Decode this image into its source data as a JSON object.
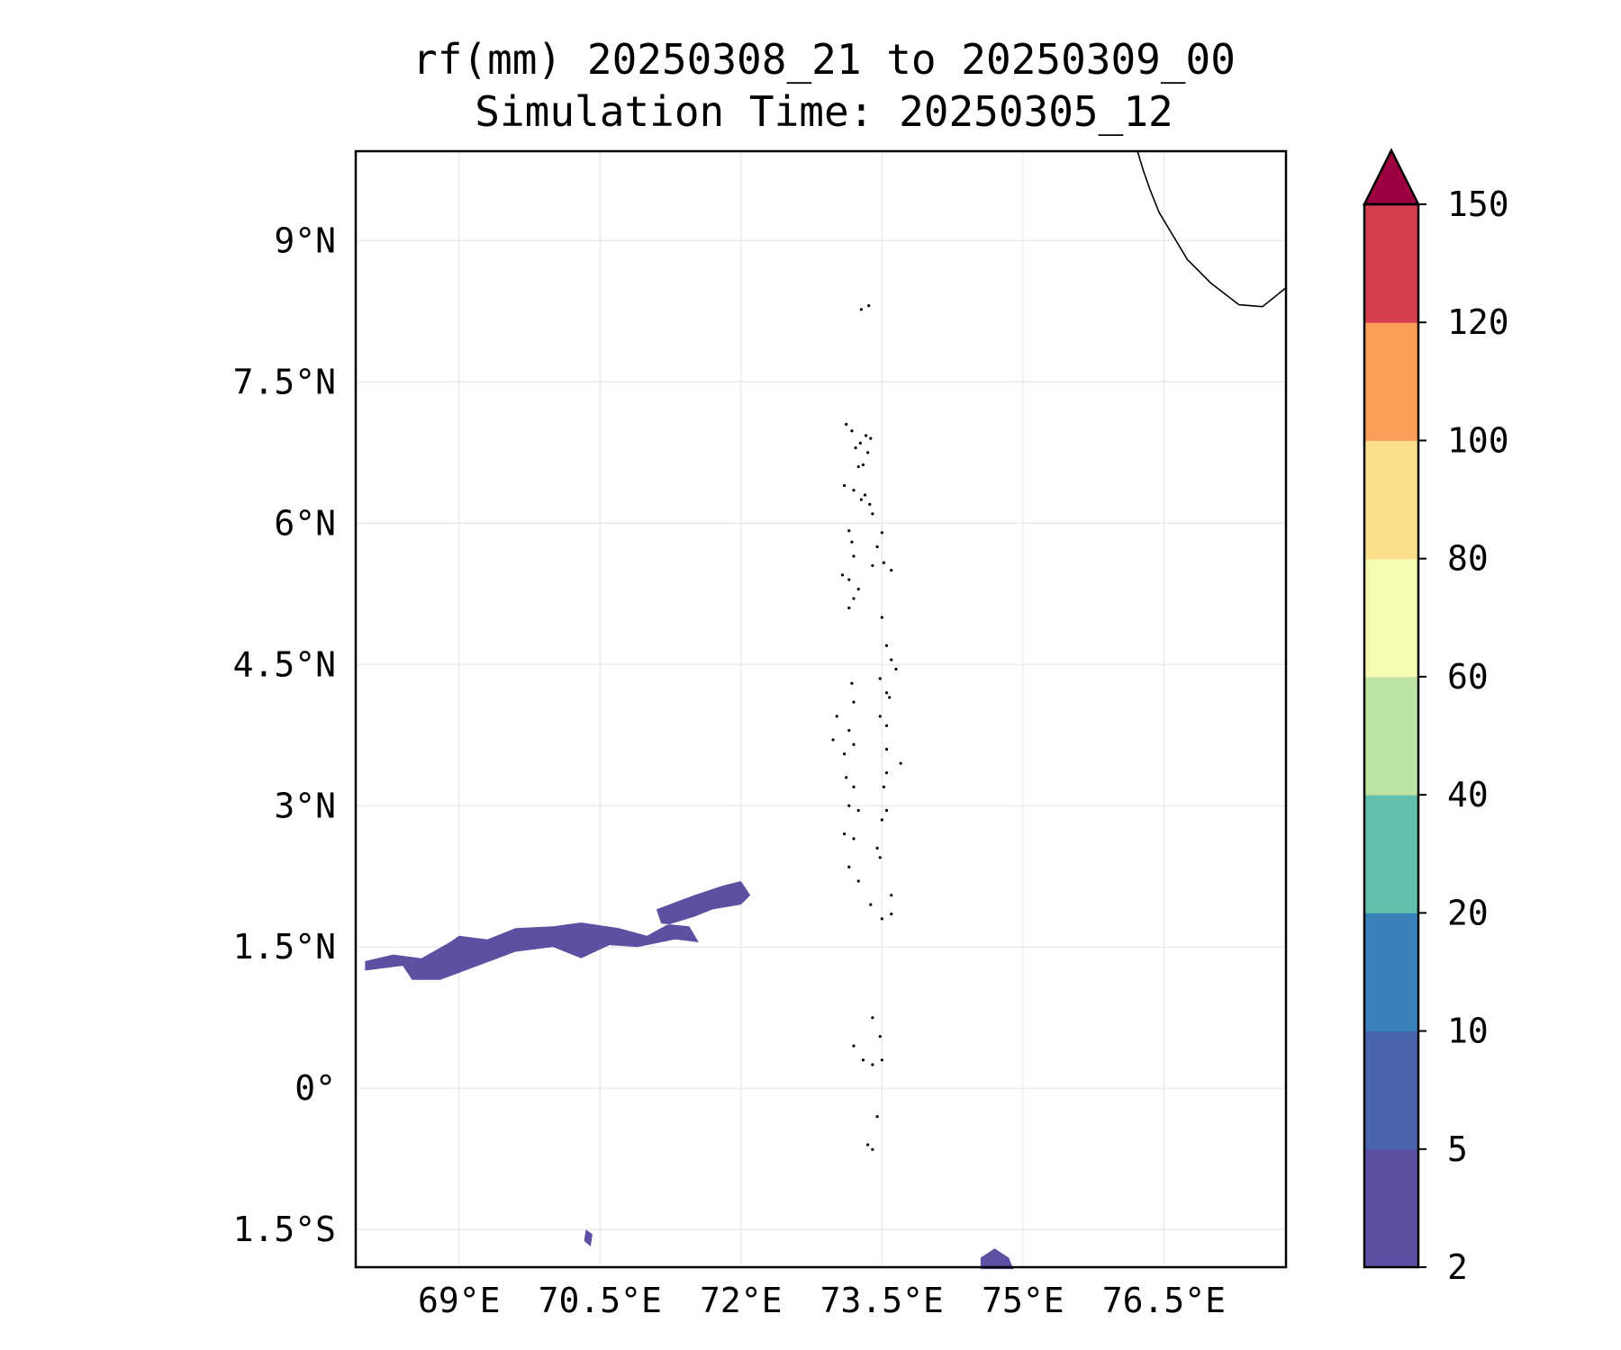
{
  "title_line1": "rf(mm) 20250308_21 to 20250309_00",
  "title_line2": "Simulation Time: 20250305_12",
  "map": {
    "lon_range": [
      67.9,
      77.8
    ],
    "lat_range": [
      -1.9,
      9.95
    ],
    "gridlines": true,
    "x_ticks": [
      {
        "value": 69,
        "label": "69°E"
      },
      {
        "value": 70.5,
        "label": "70.5°E"
      },
      {
        "value": 72,
        "label": "72°E"
      },
      {
        "value": 73.5,
        "label": "73.5°E"
      },
      {
        "value": 75,
        "label": "75°E"
      },
      {
        "value": 76.5,
        "label": "76.5°E"
      }
    ],
    "y_ticks": [
      {
        "value": 9,
        "label": "9°N"
      },
      {
        "value": 7.5,
        "label": "7.5°N"
      },
      {
        "value": 6,
        "label": "6°N"
      },
      {
        "value": 4.5,
        "label": "4.5°N"
      },
      {
        "value": 3,
        "label": "3°N"
      },
      {
        "value": 1.5,
        "label": "1.5°N"
      },
      {
        "value": 0,
        "label": "0°"
      },
      {
        "value": -1.5,
        "label": "1.5°S"
      }
    ]
  },
  "rain_areas": [
    {
      "name": "band-west",
      "class_range": "2-5",
      "lonlat": [
        [
          68.0,
          1.35
        ],
        [
          68.3,
          1.42
        ],
        [
          68.6,
          1.38
        ],
        [
          68.9,
          1.55
        ],
        [
          69.0,
          1.62
        ],
        [
          69.3,
          1.58
        ],
        [
          69.6,
          1.7
        ],
        [
          70.0,
          1.72
        ],
        [
          70.3,
          1.76
        ],
        [
          70.7,
          1.7
        ],
        [
          71.0,
          1.62
        ],
        [
          71.2,
          1.73
        ],
        [
          71.5,
          1.82
        ],
        [
          71.7,
          1.9
        ],
        [
          72.0,
          1.95
        ],
        [
          72.1,
          2.05
        ],
        [
          72.0,
          2.2
        ],
        [
          71.8,
          2.15
        ],
        [
          71.5,
          2.05
        ],
        [
          71.1,
          1.9
        ],
        [
          71.15,
          1.75
        ],
        [
          71.45,
          1.72
        ],
        [
          71.55,
          1.55
        ],
        [
          71.3,
          1.58
        ],
        [
          70.9,
          1.5
        ],
        [
          70.6,
          1.52
        ],
        [
          70.3,
          1.38
        ],
        [
          70.0,
          1.5
        ],
        [
          69.6,
          1.45
        ],
        [
          69.2,
          1.3
        ],
        [
          68.8,
          1.15
        ],
        [
          68.5,
          1.15
        ],
        [
          68.4,
          1.3
        ],
        [
          68.0,
          1.25
        ]
      ]
    },
    {
      "name": "spot-south-1",
      "class_range": "2-5",
      "lonlat": [
        [
          70.35,
          -1.5
        ],
        [
          70.42,
          -1.55
        ],
        [
          70.4,
          -1.68
        ],
        [
          70.33,
          -1.62
        ]
      ]
    },
    {
      "name": "spot-south-2",
      "class_range": "2-5",
      "lonlat": [
        [
          74.55,
          -1.8
        ],
        [
          74.7,
          -1.7
        ],
        [
          74.85,
          -1.8
        ],
        [
          74.9,
          -1.92
        ],
        [
          74.55,
          -1.92
        ]
      ]
    }
  ],
  "islands_lonlat": [
    [
      73.28,
      8.27
    ],
    [
      73.36,
      8.31
    ],
    [
      73.12,
      7.05
    ],
    [
      73.18,
      6.98
    ],
    [
      73.22,
      6.8
    ],
    [
      73.27,
      6.85
    ],
    [
      73.33,
      6.93
    ],
    [
      73.38,
      6.9
    ],
    [
      73.35,
      6.75
    ],
    [
      73.3,
      6.62
    ],
    [
      73.25,
      6.6
    ],
    [
      73.1,
      6.4
    ],
    [
      73.2,
      6.35
    ],
    [
      73.28,
      6.25
    ],
    [
      73.32,
      6.3
    ],
    [
      73.37,
      6.2
    ],
    [
      73.4,
      6.1
    ],
    [
      73.15,
      5.92
    ],
    [
      73.18,
      5.8
    ],
    [
      73.2,
      5.65
    ],
    [
      73.5,
      5.9
    ],
    [
      73.45,
      5.75
    ],
    [
      73.4,
      5.55
    ],
    [
      73.52,
      5.58
    ],
    [
      73.6,
      5.5
    ],
    [
      73.15,
      5.4
    ],
    [
      73.08,
      5.45
    ],
    [
      73.25,
      5.3
    ],
    [
      73.2,
      5.2
    ],
    [
      73.15,
      5.1
    ],
    [
      73.5,
      5.0
    ],
    [
      73.55,
      4.7
    ],
    [
      73.6,
      4.55
    ],
    [
      73.65,
      4.45
    ],
    [
      73.48,
      4.35
    ],
    [
      73.55,
      4.2
    ],
    [
      73.58,
      4.15
    ],
    [
      73.18,
      4.3
    ],
    [
      73.2,
      4.1
    ],
    [
      73.02,
      3.95
    ],
    [
      73.15,
      3.8
    ],
    [
      73.2,
      3.65
    ],
    [
      72.98,
      3.7
    ],
    [
      73.1,
      3.55
    ],
    [
      73.48,
      3.95
    ],
    [
      73.55,
      3.85
    ],
    [
      73.55,
      3.6
    ],
    [
      73.7,
      3.45
    ],
    [
      73.55,
      3.35
    ],
    [
      73.52,
      3.2
    ],
    [
      73.12,
      3.3
    ],
    [
      73.2,
      3.2
    ],
    [
      73.15,
      3.0
    ],
    [
      73.25,
      2.95
    ],
    [
      73.5,
      2.85
    ],
    [
      73.55,
      2.95
    ],
    [
      73.1,
      2.7
    ],
    [
      73.2,
      2.65
    ],
    [
      73.45,
      2.55
    ],
    [
      73.48,
      2.45
    ],
    [
      73.15,
      2.35
    ],
    [
      73.25,
      2.2
    ],
    [
      73.38,
      1.95
    ],
    [
      73.5,
      1.8
    ],
    [
      73.6,
      1.85
    ],
    [
      73.6,
      2.05
    ],
    [
      73.4,
      0.75
    ],
    [
      73.48,
      0.55
    ],
    [
      73.2,
      0.45
    ],
    [
      73.3,
      0.3
    ],
    [
      73.4,
      0.25
    ],
    [
      73.5,
      0.3
    ],
    [
      73.45,
      -0.3
    ],
    [
      73.35,
      -0.6
    ],
    [
      73.4,
      -0.65
    ]
  ],
  "coast_lonlat": [
    [
      76.22,
      9.95
    ],
    [
      76.28,
      9.75
    ],
    [
      76.35,
      9.55
    ],
    [
      76.45,
      9.3
    ],
    [
      76.6,
      9.05
    ],
    [
      76.75,
      8.8
    ],
    [
      77.0,
      8.55
    ],
    [
      77.3,
      8.32
    ],
    [
      77.55,
      8.3
    ],
    [
      77.8,
      8.5
    ]
  ],
  "colorbar": {
    "bounds_labels": [
      "2",
      "5",
      "10",
      "20",
      "40",
      "60",
      "80",
      "100",
      "120",
      "150"
    ],
    "colors": [
      "#5e4fa2",
      "#4b65ad",
      "#3a82bc",
      "#63bfab",
      "#bce3a4",
      "#f5fbaf",
      "#fddf8b",
      "#f99d59",
      "#d53e4f"
    ],
    "extend_color": "#9e0142"
  }
}
